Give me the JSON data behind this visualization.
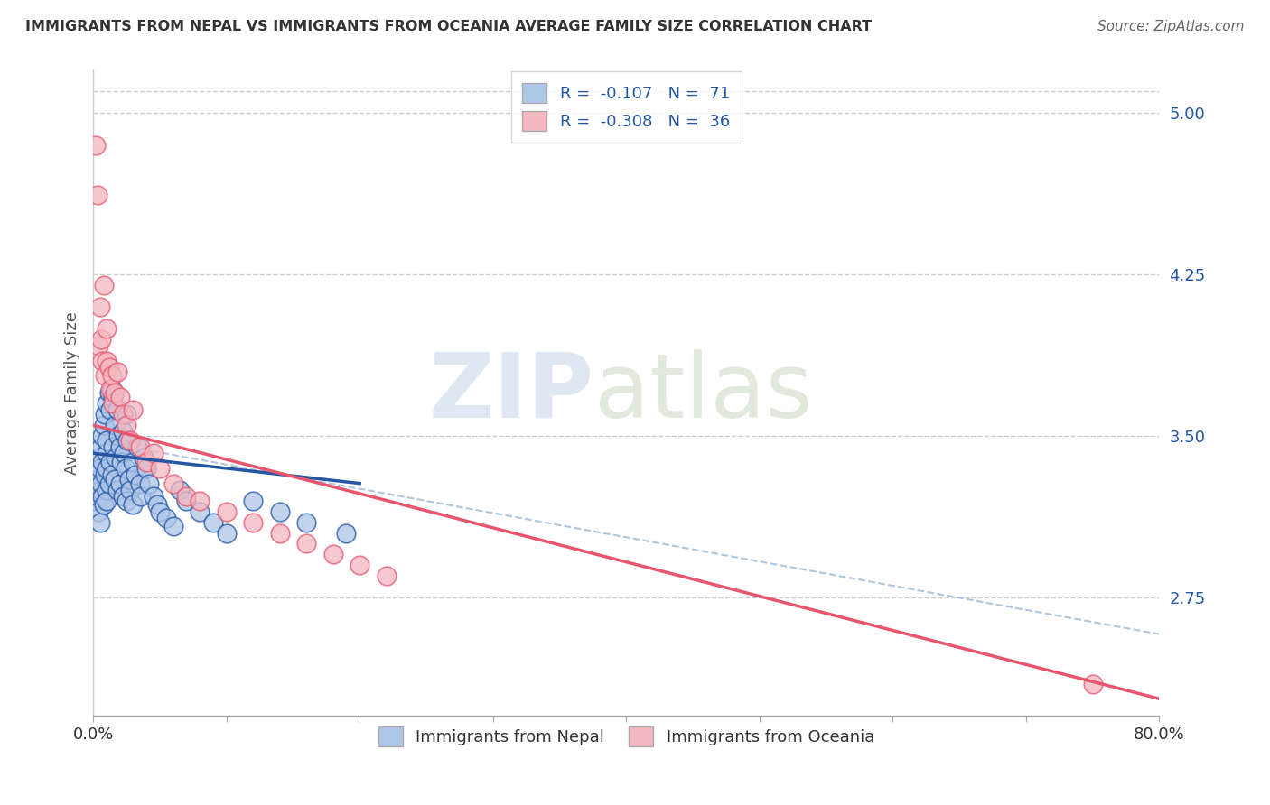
{
  "title": "IMMIGRANTS FROM NEPAL VS IMMIGRANTS FROM OCEANIA AVERAGE FAMILY SIZE CORRELATION CHART",
  "source": "Source: ZipAtlas.com",
  "ylabel": "Average Family Size",
  "legend_label1": "Immigrants from Nepal",
  "legend_label2": "Immigrants from Oceania",
  "r1": -0.107,
  "n1": 71,
  "r2": -0.308,
  "n2": 36,
  "xlim": [
    0.0,
    0.8
  ],
  "ylim": [
    2.2,
    5.2
  ],
  "yticks_right": [
    2.75,
    3.5,
    4.25,
    5.0
  ],
  "color_nepal": "#aec6e8",
  "color_oceania": "#f4b8c1",
  "color_line_nepal": "#2456a4",
  "color_line_oceania": "#e8566e",
  "color_dashed": "#9bb8d4",
  "background_color": "#ffffff",
  "watermark_zip": "ZIP",
  "watermark_atlas": "atlas",
  "nepal_x": [
    0.002,
    0.003,
    0.004,
    0.004,
    0.005,
    0.005,
    0.005,
    0.006,
    0.006,
    0.007,
    0.007,
    0.007,
    0.008,
    0.008,
    0.009,
    0.009,
    0.01,
    0.01,
    0.01,
    0.01,
    0.01,
    0.01,
    0.012,
    0.012,
    0.013,
    0.013,
    0.014,
    0.014,
    0.015,
    0.015,
    0.016,
    0.016,
    0.017,
    0.018,
    0.018,
    0.019,
    0.02,
    0.02,
    0.021,
    0.022,
    0.022,
    0.023,
    0.024,
    0.025,
    0.025,
    0.026,
    0.027,
    0.028,
    0.03,
    0.03,
    0.032,
    0.033,
    0.035,
    0.036,
    0.038,
    0.04,
    0.042,
    0.045,
    0.048,
    0.05,
    0.055,
    0.06,
    0.065,
    0.07,
    0.08,
    0.09,
    0.1,
    0.12,
    0.14,
    0.16,
    0.19
  ],
  "nepal_y": [
    3.2,
    3.3,
    3.15,
    3.4,
    3.25,
    3.35,
    3.1,
    3.45,
    3.28,
    3.5,
    3.22,
    3.38,
    3.55,
    3.18,
    3.6,
    3.32,
    3.65,
    3.42,
    3.25,
    3.48,
    3.35,
    3.2,
    3.7,
    3.28,
    3.62,
    3.38,
    3.72,
    3.32,
    3.68,
    3.45,
    3.55,
    3.3,
    3.4,
    3.62,
    3.25,
    3.5,
    3.45,
    3.28,
    3.38,
    3.52,
    3.22,
    3.42,
    3.35,
    3.6,
    3.2,
    3.48,
    3.3,
    3.25,
    3.38,
    3.18,
    3.32,
    3.45,
    3.28,
    3.22,
    3.4,
    3.35,
    3.28,
    3.22,
    3.18,
    3.15,
    3.12,
    3.08,
    3.25,
    3.2,
    3.15,
    3.1,
    3.05,
    3.2,
    3.15,
    3.1,
    3.05
  ],
  "oceania_x": [
    0.002,
    0.003,
    0.004,
    0.005,
    0.006,
    0.007,
    0.008,
    0.009,
    0.01,
    0.01,
    0.012,
    0.013,
    0.014,
    0.015,
    0.016,
    0.018,
    0.02,
    0.022,
    0.025,
    0.028,
    0.03,
    0.035,
    0.04,
    0.045,
    0.05,
    0.06,
    0.07,
    0.08,
    0.1,
    0.12,
    0.14,
    0.16,
    0.18,
    0.2,
    0.22,
    0.75
  ],
  "oceania_y": [
    4.85,
    4.62,
    3.92,
    4.1,
    3.95,
    3.85,
    4.2,
    3.78,
    3.85,
    4.0,
    3.82,
    3.72,
    3.78,
    3.65,
    3.7,
    3.8,
    3.68,
    3.6,
    3.55,
    3.48,
    3.62,
    3.45,
    3.38,
    3.42,
    3.35,
    3.28,
    3.22,
    3.2,
    3.15,
    3.1,
    3.05,
    3.0,
    2.95,
    2.9,
    2.85,
    2.35
  ],
  "nepal_line_x": [
    0.0,
    0.2
  ],
  "nepal_line_y": [
    3.42,
    3.28
  ],
  "oceania_line_x": [
    0.0,
    0.8
  ],
  "oceania_line_y": [
    3.55,
    2.28
  ],
  "dashed_line_x": [
    0.0,
    0.8
  ],
  "dashed_line_y": [
    3.48,
    2.58
  ]
}
